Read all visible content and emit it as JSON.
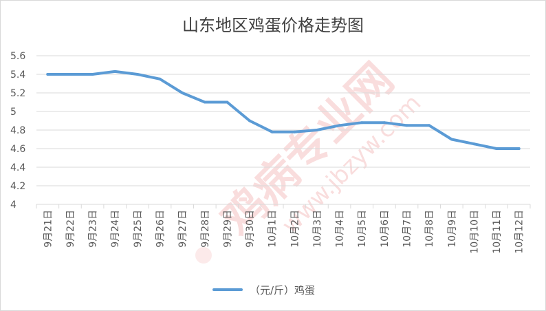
{
  "chart_data": {
    "type": "line",
    "title": "山东地区鸡蛋价格走势图",
    "categories": [
      "9月21日",
      "9月22日",
      "9月23日",
      "9月24日",
      "9月25日",
      "9月26日",
      "9月27日",
      "9月28日",
      "9月29日",
      "9月30日",
      "10月1日",
      "10月2日",
      "10月3日",
      "10月4日",
      "10月5日",
      "10月6日",
      "10月7日",
      "10月8日",
      "10月9日",
      "10月10日",
      "10月11日",
      "10月12日"
    ],
    "series": [
      {
        "name": "（元/斤）鸡蛋",
        "color": "#5b9bd5",
        "values": [
          5.4,
          5.4,
          5.4,
          5.43,
          5.4,
          5.35,
          5.2,
          5.1,
          5.1,
          4.9,
          4.78,
          4.78,
          4.8,
          4.85,
          4.88,
          4.88,
          4.85,
          4.85,
          4.7,
          4.65,
          4.6,
          4.6
        ]
      }
    ],
    "ylim": [
      4,
      5.6
    ],
    "yticks": [
      "4",
      "4.2",
      "4.4",
      "4.6",
      "4.8",
      "5",
      "5.2",
      "5.4",
      "5.6"
    ],
    "grid": true,
    "legend": "bottom"
  },
  "watermark": {
    "text": "鸡病专业网",
    "url": "www.jbzyw.com"
  }
}
